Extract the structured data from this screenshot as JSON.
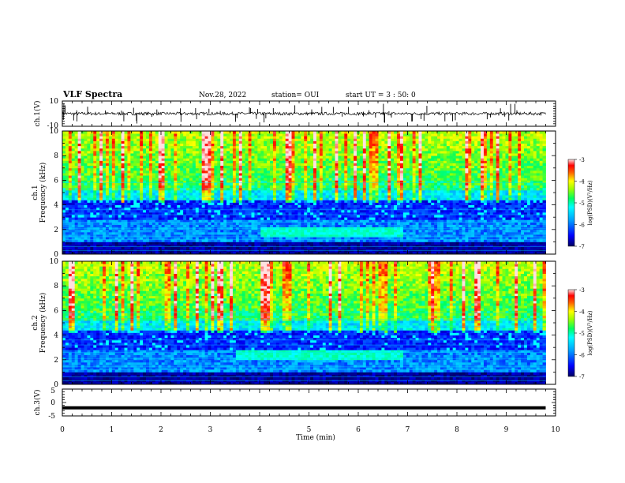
{
  "header": {
    "title": "VLF Spectra",
    "date": "Nov.28, 2022",
    "station": "station= OUI",
    "start": "start UT = 3 : 50: 0"
  },
  "chart_data": [
    {
      "type": "line",
      "panel": "ch1-waveform",
      "ylabel": "ch.1(V)",
      "ylim": [
        -10,
        10
      ],
      "yticks": [
        "10",
        "-10"
      ],
      "xlim": [
        0,
        10
      ],
      "series": [
        {
          "x_range": [
            0,
            9.8
          ],
          "baseline": 0,
          "noise_amplitude": 1.2,
          "spike_count": 60
        }
      ]
    },
    {
      "type": "heatmap",
      "panel": "ch1-spectrogram",
      "ylabel_line1": "ch.1",
      "ylabel_line2": "Frequency (kHz)",
      "ylim": [
        0,
        10
      ],
      "yticks": [
        "0",
        "2",
        "4",
        "6",
        "8",
        "10"
      ],
      "xlim": [
        0,
        10
      ],
      "data_xmax": 9.8,
      "colorbar": {
        "label": "log(PSD)(V²/Hz)",
        "range": [
          -7,
          -3
        ],
        "ticks": [
          "-3",
          "-4",
          "-5",
          "-6",
          "-7"
        ]
      },
      "features": {
        "band_khz": [
          1.5,
          2.2
        ],
        "band_time_min": [
          4.0,
          6.9
        ]
      }
    },
    {
      "type": "heatmap",
      "panel": "ch2-spectrogram",
      "ylabel_line1": "ch.2",
      "ylabel_line2": "Frequency (kHz)",
      "ylim": [
        0,
        10
      ],
      "yticks": [
        "0",
        "2",
        "4",
        "6",
        "8",
        "10"
      ],
      "xlim": [
        0,
        10
      ],
      "data_xmax": 9.8,
      "colorbar": {
        "label": "log(PSD)(V²/Hz)",
        "range": [
          -7,
          -3
        ],
        "ticks": [
          "-3",
          "-4",
          "-5",
          "-6",
          "-7"
        ]
      },
      "features": {
        "band_khz": [
          2.0,
          2.8
        ],
        "band_time_min": [
          3.5,
          6.9
        ]
      }
    },
    {
      "type": "line",
      "panel": "ch3-waveform",
      "ylabel": "ch.3(V)",
      "ylim": [
        -5,
        5
      ],
      "yticks": [
        "5",
        "0",
        "-5"
      ],
      "xlim": [
        0,
        10
      ],
      "series": [
        {
          "x_range": [
            0,
            9.8
          ],
          "value": -2
        }
      ],
      "xticks": [
        "0",
        "1",
        "2",
        "3",
        "4",
        "5",
        "6",
        "7",
        "8",
        "9",
        "10"
      ],
      "xlabel": "Time (min)"
    }
  ],
  "colors": {
    "colormap": [
      "#00007a",
      "#0000ff",
      "#0080ff",
      "#00ffff",
      "#00ff80",
      "#80ff00",
      "#ffff00",
      "#ff8000",
      "#ff0000",
      "#ffffff"
    ]
  }
}
